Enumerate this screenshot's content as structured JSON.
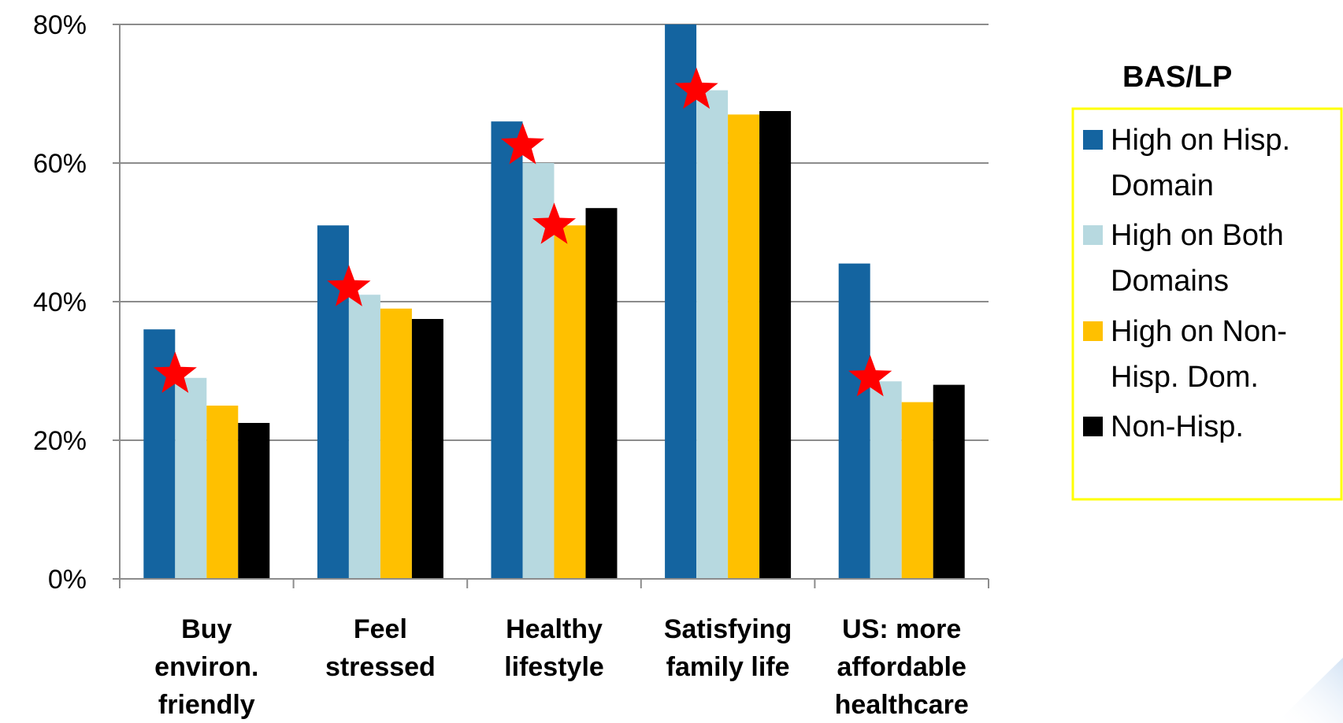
{
  "chart_data": {
    "type": "bar",
    "categories": [
      [
        "Buy",
        "environ.",
        "friendly"
      ],
      [
        "Feel",
        "stressed"
      ],
      [
        "Healthy",
        "lifestyle"
      ],
      [
        "Satisfying",
        "family life"
      ],
      [
        "US: more",
        "affordable",
        "healthcare"
      ]
    ],
    "series": [
      {
        "name": [
          "High on Hisp.",
          "Domain"
        ],
        "color": "#1464A0",
        "values": [
          36,
          51,
          66,
          80,
          45.5
        ]
      },
      {
        "name": [
          "High on Both",
          "Domains"
        ],
        "color": "#B7D9E0",
        "values": [
          29,
          41,
          60,
          70.5,
          28.5
        ]
      },
      {
        "name": [
          "High on Non-",
          "Hisp. Dom."
        ],
        "color": "#FFC000",
        "values": [
          25,
          39,
          51,
          67,
          25.5
        ]
      },
      {
        "name": [
          "Non-Hisp."
        ],
        "color": "#000000",
        "values": [
          22.5,
          37.5,
          53.5,
          67.5,
          28
        ]
      }
    ],
    "yticks": [
      "0%",
      "20%",
      "40%",
      "60%",
      "80%"
    ],
    "ylim": [
      0,
      80
    ],
    "grid": true,
    "legend": {
      "title": "BAS/LP",
      "placement": "right",
      "border_color": "#FFFF00"
    },
    "annotations": {
      "marker": "red-star-icon",
      "color": "#FF0000",
      "points": [
        {
          "category": 0,
          "value": 29.5
        },
        {
          "category": 1,
          "value": 42
        },
        {
          "category": 2,
          "value": 62.5
        },
        {
          "category": 2,
          "value": 51
        },
        {
          "category": 3,
          "value": 70.5
        },
        {
          "category": 4,
          "value": 29
        }
      ]
    }
  }
}
